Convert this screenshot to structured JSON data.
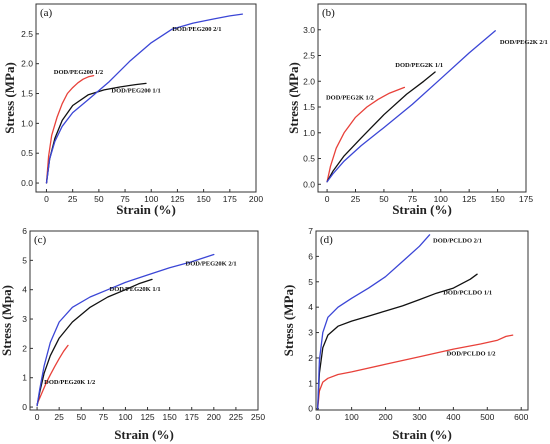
{
  "chart_data": [
    {
      "type": "line",
      "panel_label": "(a)",
      "xlabel": "Strain (%)",
      "ylabel": "Stress (MPa)",
      "xlim": [
        -10,
        200
      ],
      "ylim": [
        -0.15,
        3.0
      ],
      "xticks": [
        0,
        25,
        50,
        75,
        100,
        125,
        150,
        175,
        200
      ],
      "yticks": [
        0.0,
        0.5,
        1.0,
        1.5,
        2.0,
        2.5
      ],
      "ytick_labels": [
        "0.0",
        "0.5",
        "1.0",
        "1.5",
        "2.0",
        "2.5"
      ],
      "series": [
        {
          "name": "DOD/PEG200 1/2",
          "color": "#e8413a",
          "x": [
            0,
            2,
            5,
            10,
            15,
            20,
            25,
            30,
            35,
            40,
            45
          ],
          "y": [
            0.0,
            0.45,
            0.8,
            1.1,
            1.33,
            1.5,
            1.6,
            1.68,
            1.74,
            1.78,
            1.8
          ]
        },
        {
          "name": "DOD/PEG200 1/1",
          "color": "#111111",
          "x": [
            0,
            3,
            8,
            15,
            25,
            40,
            55,
            70,
            85,
            95
          ],
          "y": [
            0.0,
            0.4,
            0.75,
            1.05,
            1.3,
            1.48,
            1.56,
            1.61,
            1.65,
            1.67
          ]
        },
        {
          "name": "DOD/PEG200 2/1",
          "color": "#3b46d6",
          "x": [
            0,
            3,
            8,
            15,
            25,
            40,
            60,
            80,
            100,
            120,
            140,
            160,
            175,
            187
          ],
          "y": [
            0.0,
            0.4,
            0.7,
            0.95,
            1.18,
            1.4,
            1.7,
            2.05,
            2.35,
            2.58,
            2.68,
            2.75,
            2.8,
            2.83
          ]
        }
      ],
      "labels": [
        {
          "text": "DOD/PEG200 1/2",
          "x": 7,
          "y": 1.83
        },
        {
          "text": "DOD/PEG200 1/1",
          "x": 62,
          "y": 1.52
        },
        {
          "text": "DOD/PEG200 2/1",
          "x": 120,
          "y": 2.55
        }
      ]
    },
    {
      "type": "line",
      "panel_label": "(b)",
      "xlabel": "Strain (%)",
      "ylabel": "Stress (MPa)",
      "xlim": [
        -8,
        175
      ],
      "ylim": [
        -0.15,
        3.5
      ],
      "xticks": [
        0,
        25,
        50,
        75,
        100,
        125,
        150,
        175
      ],
      "yticks": [
        0.0,
        0.5,
        1.0,
        1.5,
        2.0,
        2.5,
        3.0
      ],
      "ytick_labels": [
        "0.0",
        "0.5",
        "1.0",
        "1.5",
        "2.0",
        "2.5",
        "3.0"
      ],
      "series": [
        {
          "name": "DOD/PEG2K 1/2",
          "color": "#e8413a",
          "x": [
            0,
            3,
            8,
            15,
            25,
            35,
            45,
            55,
            68
          ],
          "y": [
            0.05,
            0.35,
            0.7,
            1.0,
            1.3,
            1.5,
            1.65,
            1.77,
            1.88
          ]
        },
        {
          "name": "DOD/PEG2K 1/1",
          "color": "#111111",
          "x": [
            0,
            5,
            15,
            30,
            50,
            70,
            85,
            95
          ],
          "y": [
            0.05,
            0.25,
            0.55,
            0.9,
            1.35,
            1.75,
            2.0,
            2.18
          ]
        },
        {
          "name": "DOD/PEG2K 2/1",
          "color": "#3b46d6",
          "x": [
            0,
            5,
            15,
            30,
            50,
            75,
            100,
            125,
            148
          ],
          "y": [
            0.05,
            0.2,
            0.45,
            0.75,
            1.1,
            1.55,
            2.05,
            2.55,
            2.98
          ]
        }
      ],
      "labels": [
        {
          "text": "DOD/PEG2K 1/2",
          "x": -1,
          "y": 1.65
        },
        {
          "text": "DOD/PEG2K 1/1",
          "x": 60,
          "y": 2.28
        },
        {
          "text": "DOD/PEG2K 2/1",
          "x": 152,
          "y": 2.72
        }
      ]
    },
    {
      "type": "line",
      "panel_label": "(c)",
      "xlabel": "Strain (%)",
      "ylabel": "Stress (Mpa)",
      "xlim": [
        -8,
        250
      ],
      "ylim": [
        -0.1,
        6.0
      ],
      "xticks": [
        0,
        25,
        50,
        75,
        100,
        125,
        150,
        175,
        200,
        225,
        250
      ],
      "yticks": [
        0,
        1,
        2,
        3,
        4,
        5,
        6
      ],
      "ytick_labels": [
        "0",
        "1",
        "2",
        "3",
        "4",
        "5",
        "6"
      ],
      "series": [
        {
          "name": "DOD/PEG20K 1/2",
          "color": "#e8413a",
          "x": [
            0,
            5,
            10,
            15,
            20,
            25,
            30,
            35
          ],
          "y": [
            0.1,
            0.45,
            0.8,
            1.1,
            1.38,
            1.65,
            1.9,
            2.1
          ]
        },
        {
          "name": "DOD/PEG20K 1/1",
          "color": "#111111",
          "x": [
            0,
            3,
            8,
            15,
            25,
            40,
            60,
            80,
            100,
            115,
            130
          ],
          "y": [
            0.05,
            0.5,
            1.15,
            1.75,
            2.35,
            2.9,
            3.4,
            3.75,
            4.0,
            4.2,
            4.35
          ]
        },
        {
          "name": "DOD/PEG20K 2/1",
          "color": "#3b46d6",
          "x": [
            0,
            3,
            8,
            15,
            25,
            40,
            60,
            80,
            100,
            125,
            150,
            175,
            200
          ],
          "y": [
            0.05,
            0.6,
            1.4,
            2.2,
            2.9,
            3.4,
            3.75,
            4.0,
            4.25,
            4.5,
            4.75,
            4.95,
            5.2
          ]
        }
      ],
      "labels": [
        {
          "text": "DOD/PEG20K 1/2",
          "x": 8,
          "y": 0.78
        },
        {
          "text": "DOD/PEG20K 1/1",
          "x": 82,
          "y": 3.95
        },
        {
          "text": "DOD/PEG20K 2/1",
          "x": 168,
          "y": 4.82
        }
      ]
    },
    {
      "type": "line",
      "panel_label": "(d)",
      "xlabel": "Strain (%)",
      "ylabel": "Stress (MPa)",
      "xlim": [
        -5,
        620
      ],
      "ylim": [
        -0.05,
        7.0
      ],
      "xticks": [
        0,
        100,
        200,
        300,
        400,
        500,
        600
      ],
      "yticks": [
        0,
        1,
        2,
        3,
        4,
        5,
        6,
        7
      ],
      "ytick_labels": [
        "0",
        "1",
        "2",
        "3",
        "4",
        "5",
        "6",
        "7"
      ],
      "series": [
        {
          "name": "DOD/PCLDO 1/2",
          "color": "#e8413a",
          "x": [
            0,
            5,
            15,
            30,
            60,
            100,
            200,
            300,
            400,
            480,
            530,
            555,
            575
          ],
          "y": [
            0.0,
            0.7,
            1.05,
            1.2,
            1.35,
            1.45,
            1.75,
            2.05,
            2.35,
            2.55,
            2.7,
            2.85,
            2.9
          ]
        },
        {
          "name": "DOD/PCLDO 1/1",
          "color": "#111111",
          "x": [
            0,
            5,
            15,
            30,
            60,
            100,
            150,
            200,
            250,
            300,
            350,
            400,
            450,
            470
          ],
          "y": [
            0.0,
            1.4,
            2.4,
            2.9,
            3.25,
            3.45,
            3.65,
            3.85,
            4.05,
            4.3,
            4.55,
            4.75,
            5.1,
            5.3
          ]
        },
        {
          "name": "DOD/PCLDO 2/1",
          "color": "#3b46d6",
          "x": [
            0,
            5,
            15,
            30,
            60,
            100,
            150,
            200,
            250,
            300,
            330
          ],
          "y": [
            0.0,
            1.9,
            3.0,
            3.6,
            4.0,
            4.35,
            4.75,
            5.2,
            5.8,
            6.4,
            6.85
          ]
        }
      ],
      "labels": [
        {
          "text": "DOD/PCLDO 2/1",
          "x": 340,
          "y": 6.55
        },
        {
          "text": "DOD/PCLDO 1/1",
          "x": 370,
          "y": 4.5
        },
        {
          "text": "DOD/PCLDO 1/2",
          "x": 380,
          "y": 2.1
        }
      ]
    }
  ]
}
